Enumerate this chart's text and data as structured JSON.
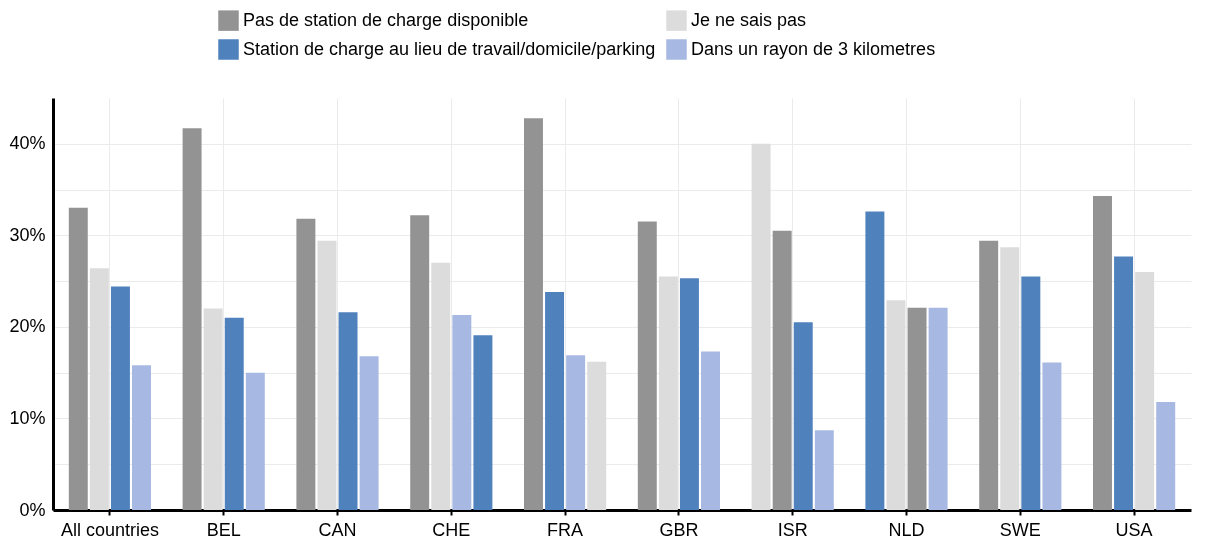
{
  "chart_data": {
    "type": "bar",
    "categories": [
      "All countries",
      "BEL",
      "CAN",
      "CHE",
      "FRA",
      "GBR",
      "ISR",
      "NLD",
      "SWE",
      "USA"
    ],
    "series": [
      {
        "name": "Pas de station de charge disponible",
        "color": "#939393",
        "values": [
          33.0,
          41.7,
          31.8,
          32.2,
          42.8,
          31.5,
          30.5,
          22.1,
          29.4,
          34.3
        ]
      },
      {
        "name": "Je ne sais pas",
        "color": "#dcdcdc",
        "values": [
          26.4,
          22.0,
          29.4,
          27.0,
          16.2,
          25.5,
          40.0,
          22.9,
          28.7,
          26.0
        ]
      },
      {
        "name": "Station de charge au lieu de travail/domicile/parking",
        "color": "#4f81bd",
        "values": [
          24.4,
          21.0,
          21.6,
          19.1,
          23.8,
          25.3,
          20.5,
          32.6,
          25.5,
          27.7
        ]
      },
      {
        "name": "Dans un rayon de 3 kilometres",
        "color": "#a7b8e2",
        "values": [
          15.8,
          15.0,
          16.8,
          21.3,
          16.9,
          17.3,
          8.7,
          22.1,
          16.1,
          11.8
        ]
      }
    ],
    "ylim": [
      0,
      45
    ],
    "yticks": [
      {
        "value": 0,
        "label": "0%"
      },
      {
        "value": 5,
        "label": null
      },
      {
        "value": 10,
        "label": "10%"
      },
      {
        "value": 15,
        "label": null
      },
      {
        "value": 20,
        "label": "20%"
      },
      {
        "value": 25,
        "label": null
      },
      {
        "value": 30,
        "label": "30%"
      },
      {
        "value": 35,
        "label": null
      },
      {
        "value": 40,
        "label": "40%"
      }
    ],
    "grid": true,
    "legend": "top"
  }
}
